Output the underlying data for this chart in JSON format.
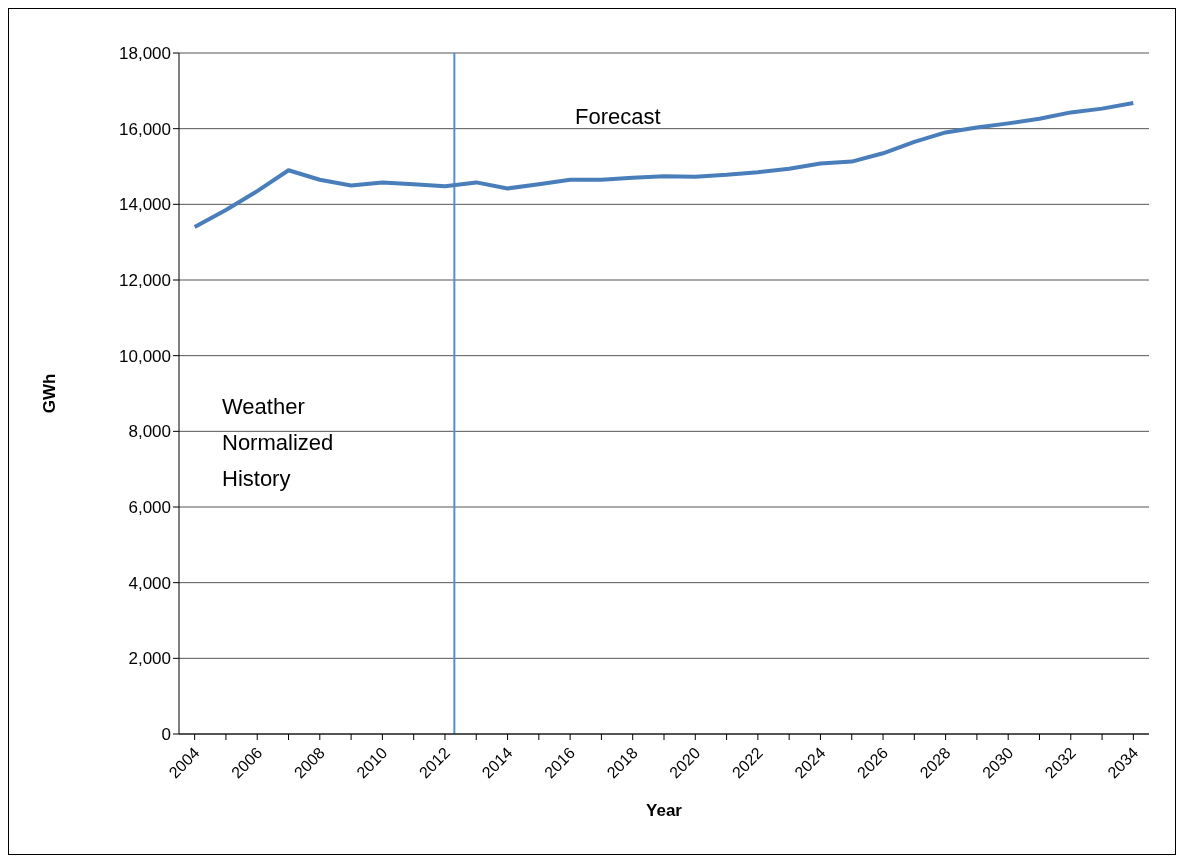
{
  "chart_data": {
    "type": "line",
    "xlabel": "Year",
    "ylabel": "GWh",
    "x": [
      2004,
      2005,
      2006,
      2007,
      2008,
      2009,
      2010,
      2011,
      2012,
      2013,
      2014,
      2015,
      2016,
      2017,
      2018,
      2019,
      2020,
      2021,
      2022,
      2023,
      2024,
      2025,
      2026,
      2027,
      2028,
      2029,
      2030,
      2031,
      2032,
      2033,
      2034
    ],
    "series": [
      {
        "color": "#4a7ebb",
        "values": [
          13400,
          13850,
          14350,
          14900,
          14650,
          14500,
          14580,
          14530,
          14480,
          14580,
          14420,
          14530,
          14650,
          14650,
          14700,
          14740,
          14730,
          14780,
          14850,
          14940,
          15080,
          15130,
          15350,
          15650,
          15900,
          16030,
          16140,
          16260,
          16430,
          16530,
          16680
        ]
      }
    ],
    "xlim": [
      2003.5,
      2034.5
    ],
    "xticks": [
      2004,
      {
        "value": 2005,
        "label": null
      },
      2006,
      {
        "value": 2007,
        "label": null
      },
      2008,
      {
        "value": 2009,
        "label": null
      },
      2010,
      {
        "value": 2011,
        "label": null
      },
      2012,
      {
        "value": 2013,
        "label": null
      },
      2014,
      {
        "value": 2015,
        "label": null
      },
      2016,
      {
        "value": 2017,
        "label": null
      },
      2018,
      {
        "value": 2019,
        "label": null
      },
      2020,
      {
        "value": 2021,
        "label": null
      },
      2022,
      {
        "value": 2023,
        "label": null
      },
      2024,
      {
        "value": 2025,
        "label": null
      },
      2026,
      {
        "value": 2027,
        "label": null
      },
      2028,
      {
        "value": 2029,
        "label": null
      },
      2030,
      {
        "value": 2031,
        "label": null
      },
      2032,
      {
        "value": 2033,
        "label": null
      },
      2034
    ],
    "ylim": [
      0,
      18000
    ],
    "yticks": [
      0,
      {
        "value": 2000,
        "label": "2,000"
      },
      {
        "value": 4000,
        "label": "4,000"
      },
      {
        "value": 6000,
        "label": "6,000"
      },
      {
        "value": 8000,
        "label": "8,000"
      },
      {
        "value": 10000,
        "label": "10,000"
      },
      {
        "value": 12000,
        "label": "12,000"
      },
      {
        "value": 14000,
        "label": "14,000"
      },
      {
        "value": 16000,
        "label": "16,000"
      },
      {
        "value": 18000,
        "label": "18,000"
      }
    ],
    "grid": "y",
    "marker": "none",
    "line_style": "solid",
    "ref_lines": [
      {
        "axis": "x",
        "value": 2012.3,
        "color": "#4f8fd8"
      }
    ],
    "annotations": [
      "Weather Normalized History",
      "Forecast"
    ]
  }
}
